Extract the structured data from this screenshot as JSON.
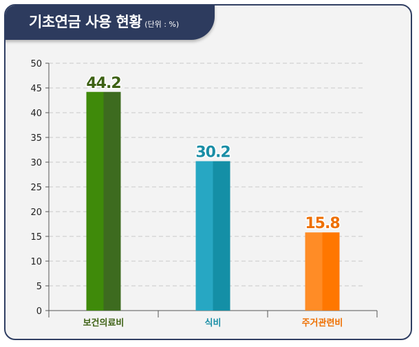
{
  "header": {
    "title": "기초연금 사용 현황",
    "unit": "(단위 : %)"
  },
  "chart_data": {
    "type": "bar",
    "categories": [
      "보건의료비",
      "식비",
      "주거관련비"
    ],
    "values": [
      44.2,
      30.2,
      15.8
    ],
    "value_labels": [
      "44.2",
      "30.2",
      "15.8"
    ],
    "ylim": [
      0,
      50
    ],
    "yticks": [
      0,
      5,
      10,
      15,
      20,
      25,
      30,
      35,
      40,
      45,
      50
    ],
    "grid": true,
    "colors": {
      "bars_light": [
        "#3f8a0a",
        "#27a7c3",
        "#ff8c26"
      ],
      "bars_dark": [
        "#3d6b1f",
        "#148fa6",
        "#ff7700"
      ],
      "labels": [
        "#3d6114",
        "#1a8ea6",
        "#ee6f00"
      ]
    }
  }
}
